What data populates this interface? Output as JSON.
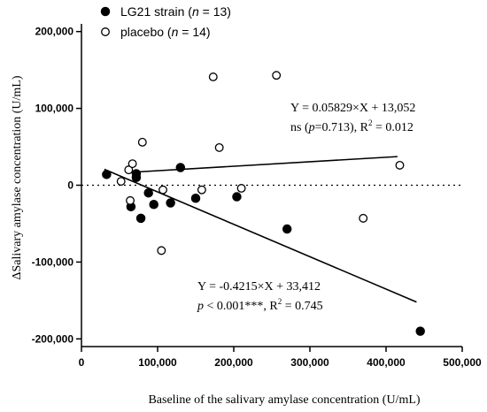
{
  "chart_data": {
    "type": "scatter",
    "xlabel": "Baseline of the salivary amylase concentration (U/mL)",
    "ylabel": "ΔSalivary amylase concentration (U/mL)",
    "xlim": [
      0,
      500000
    ],
    "ylim": [
      -210000,
      210000
    ],
    "x_ticks": [
      0,
      100000,
      200000,
      300000,
      400000,
      500000
    ],
    "x_tick_labels": [
      "0",
      "100,000",
      "200,000",
      "300,000",
      "400,000",
      "500,000"
    ],
    "y_ticks": [
      -200000,
      -100000,
      0,
      100000,
      200000
    ],
    "y_tick_labels": [
      "-200,000",
      "-100,000",
      "0",
      "100,000",
      "200,000"
    ],
    "zero_line": "dotted",
    "grid": false,
    "legend_position": "top-left",
    "series": [
      {
        "name": "LG21 strain",
        "legend_parts": [
          "LG21 strain (",
          "n",
          " = 13)"
        ],
        "marker": "filled-circle",
        "color": "#000000",
        "points": [
          [
            33000,
            14000
          ],
          [
            65000,
            -28000
          ],
          [
            72000,
            15000
          ],
          [
            72000,
            10000
          ],
          [
            78000,
            -43000
          ],
          [
            88000,
            -10000
          ],
          [
            95000,
            -25000
          ],
          [
            117000,
            -23000
          ],
          [
            130000,
            23000
          ],
          [
            150000,
            -17000
          ],
          [
            204000,
            -15000
          ],
          [
            270000,
            -57000
          ],
          [
            445000,
            -190000
          ]
        ],
        "fit": {
          "slope": -0.4215,
          "intercept": 33412,
          "x_range": [
            30000,
            440000
          ],
          "equation": "Y = -0.4215×X + 33,412",
          "stats_parts": [
            "p",
            " < 0.001***, R",
            "2",
            " = 0.745"
          ]
        }
      },
      {
        "name": "placebo",
        "legend_parts": [
          "placebo (",
          "n",
          " = 14)"
        ],
        "marker": "open-circle",
        "color": "#000000",
        "points": [
          [
            52000,
            5000
          ],
          [
            62000,
            20000
          ],
          [
            64000,
            -20000
          ],
          [
            67000,
            28000
          ],
          [
            80000,
            56000
          ],
          [
            105000,
            -85000
          ],
          [
            107000,
            -6000
          ],
          [
            158000,
            -6000
          ],
          [
            173000,
            141000
          ],
          [
            181000,
            49000
          ],
          [
            210000,
            -4000
          ],
          [
            256000,
            143000
          ],
          [
            370000,
            -43000
          ],
          [
            418000,
            26000
          ]
        ],
        "fit": {
          "slope": 0.05829,
          "intercept": 13052,
          "x_range": [
            70000,
            415000
          ],
          "equation": "Y = 0.05829×X + 13,052",
          "stats_parts": [
            "ns (",
            "p",
            "=0.713), R",
            "2",
            " = 0.012"
          ]
        }
      }
    ]
  }
}
